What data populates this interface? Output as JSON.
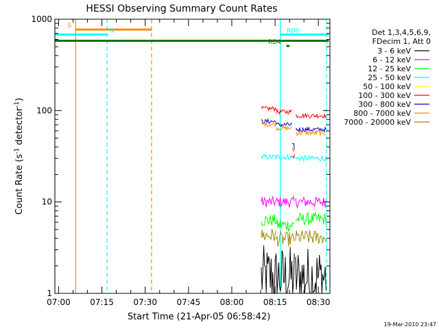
{
  "chart_data": {
    "type": "line",
    "title": "HESSI Observing Summary Count Rates",
    "xlabel": "Start Time (21-Apr-05 06:58:42)",
    "ylabel": "Count Rate (s",
    "ylabel_sup1": "-1",
    "ylabel_mid": " detector",
    "ylabel_sup2": "-1",
    "ylabel_end": ")",
    "yscale": "log",
    "ylim": [
      1,
      1000
    ],
    "xlim_min": [
      418.7,
      514
    ],
    "y_ticks": [
      {
        "value": 1,
        "label": "1"
      },
      {
        "value": 10,
        "label": "10"
      },
      {
        "value": 100,
        "label": "100"
      },
      {
        "value": 1000,
        "label": "1000"
      }
    ],
    "x_ticks": [
      {
        "value": 420,
        "label": "07:00"
      },
      {
        "value": 435,
        "label": "07:15"
      },
      {
        "value": 450,
        "label": "07:30"
      },
      {
        "value": 465,
        "label": "07:45"
      },
      {
        "value": 480,
        "label": "08:00"
      },
      {
        "value": 495,
        "label": "08:15"
      },
      {
        "value": 510,
        "label": "08:30"
      }
    ],
    "legend_header": [
      "Det 1,3,4,5,6,9,",
      "FDecim 1, Att 0"
    ],
    "series": [
      {
        "name": "3 - 6 keV",
        "color": "#000000",
        "segments": [
          {
            "t0": 490.2,
            "t1": 495.4,
            "y": 1.5,
            "noise": 0.35
          },
          {
            "t0": 495.4,
            "t1": 501.8,
            "y": 1.5,
            "noise": 0.35
          },
          {
            "t0": 502.1,
            "t1": 512.7,
            "y": 1.5,
            "noise": 0.35
          }
        ]
      },
      {
        "name": "6 - 12 keV",
        "color": "#ff00ff",
        "segments": [
          {
            "t0": 490.2,
            "t1": 501.8,
            "y": 10,
            "noise": 0.06
          },
          {
            "t0": 502.1,
            "t1": 512.7,
            "y": 10,
            "noise": 0.06
          }
        ]
      },
      {
        "name": "12 - 25 keV",
        "color": "#00ff00",
        "segments": [
          {
            "t0": 490.2,
            "t1": 495.4,
            "y": 6.3,
            "noise": 0.07
          },
          {
            "t0": 495.4,
            "t1": 501.8,
            "y": 5.6,
            "noise": 0.07
          },
          {
            "t0": 502.1,
            "t1": 512.7,
            "y": 6.5,
            "noise": 0.07
          }
        ]
      },
      {
        "name": "25 - 50 keV",
        "color": "#00ffff",
        "segments": [
          {
            "t0": 490.2,
            "t1": 501.8,
            "y": 31,
            "noise": 0.03
          },
          {
            "t0": 502.1,
            "t1": 512.7,
            "y": 30,
            "noise": 0.03
          }
        ]
      },
      {
        "name": "50 - 100 keV",
        "color": "#ffff00",
        "segments": []
      },
      {
        "name": "100 - 300 keV",
        "color": "#ff0000",
        "segments": [
          {
            "t0": 490.2,
            "t1": 495.4,
            "y": 105,
            "noise": 0.025
          },
          {
            "t0": 495.4,
            "t1": 500.9,
            "y": 97,
            "noise": 0.025
          },
          {
            "t0": 500.9,
            "t1": 501.8,
            "y": 33,
            "noise": 0.04
          },
          {
            "t0": 502.1,
            "t1": 512.7,
            "y": 88,
            "noise": 0.025
          }
        ]
      },
      {
        "name": "300 - 800 keV",
        "color": "#0000cc",
        "segments": [
          {
            "t0": 490.2,
            "t1": 495.4,
            "y": 76,
            "noise": 0.025
          },
          {
            "t0": 495.4,
            "t1": 500.9,
            "y": 70,
            "noise": 0.025
          },
          {
            "t0": 500.9,
            "t1": 501.8,
            "y": 40,
            "noise": 0.04
          },
          {
            "t0": 502.1,
            "t1": 512.7,
            "y": 62,
            "noise": 0.025
          }
        ]
      },
      {
        "name": "800 - 7000 keV",
        "color": "#ff8800",
        "segments": [
          {
            "t0": 490.2,
            "t1": 495.4,
            "y": 71,
            "noise": 0.025
          },
          {
            "t0": 495.4,
            "t1": 500.9,
            "y": 64,
            "noise": 0.025
          },
          {
            "t0": 500.9,
            "t1": 501.8,
            "y": 38,
            "noise": 0.04
          },
          {
            "t0": 502.1,
            "t1": 512.7,
            "y": 57,
            "noise": 0.03
          }
        ]
      },
      {
        "name": "7000 - 20000 keV",
        "color": "#998800",
        "segments": [
          {
            "t0": 490.2,
            "t1": 495.4,
            "y": 4.3,
            "noise": 0.08
          },
          {
            "t0": 495.4,
            "t1": 501.8,
            "y": 3.9,
            "noise": 0.08
          },
          {
            "t0": 502.1,
            "t1": 512.7,
            "y": 4.1,
            "noise": 0.08
          }
        ]
      }
    ],
    "event_lines": [
      {
        "t": 418.7,
        "color": "#00ffff",
        "dashed": false
      },
      {
        "t": 425.9,
        "color": "#ff8800",
        "dashed": false
      },
      {
        "t": 436.8,
        "color": "#00ffff",
        "dashed": true
      },
      {
        "t": 452.2,
        "color": "#ff8800",
        "dashed": true
      },
      {
        "t": 496.8,
        "color": "#00ffff",
        "dashed": false
      },
      {
        "t": 512.8,
        "color": "#00ffff",
        "dashed": true
      }
    ],
    "flag_bars": [
      {
        "label": "S",
        "color": "#ff8800",
        "t0": 425.9,
        "t1": 452.2,
        "y": 770,
        "label_t": 423.1
      },
      {
        "label": "N",
        "color": "#00ffff",
        "t0": 418.7,
        "t1": 436.8,
        "y": 680,
        "label_t": 437.6
      },
      {
        "label": "",
        "color": "#007700",
        "t0": 418.7,
        "t1": 513.6,
        "y": 580,
        "label_t": null
      },
      {
        "label": "RD0",
        "color": "#00ffff",
        "t0": 496.8,
        "t1": 513.6,
        "y": 680,
        "label_t": 499.0
      },
      {
        "label": "RD4",
        "color": "#007700",
        "t0": 498.9,
        "t1": 500.0,
        "y": 510,
        "label_t": 492.6
      }
    ]
  },
  "footer": {
    "timestamp": "19-Mar-2010 23:47"
  }
}
